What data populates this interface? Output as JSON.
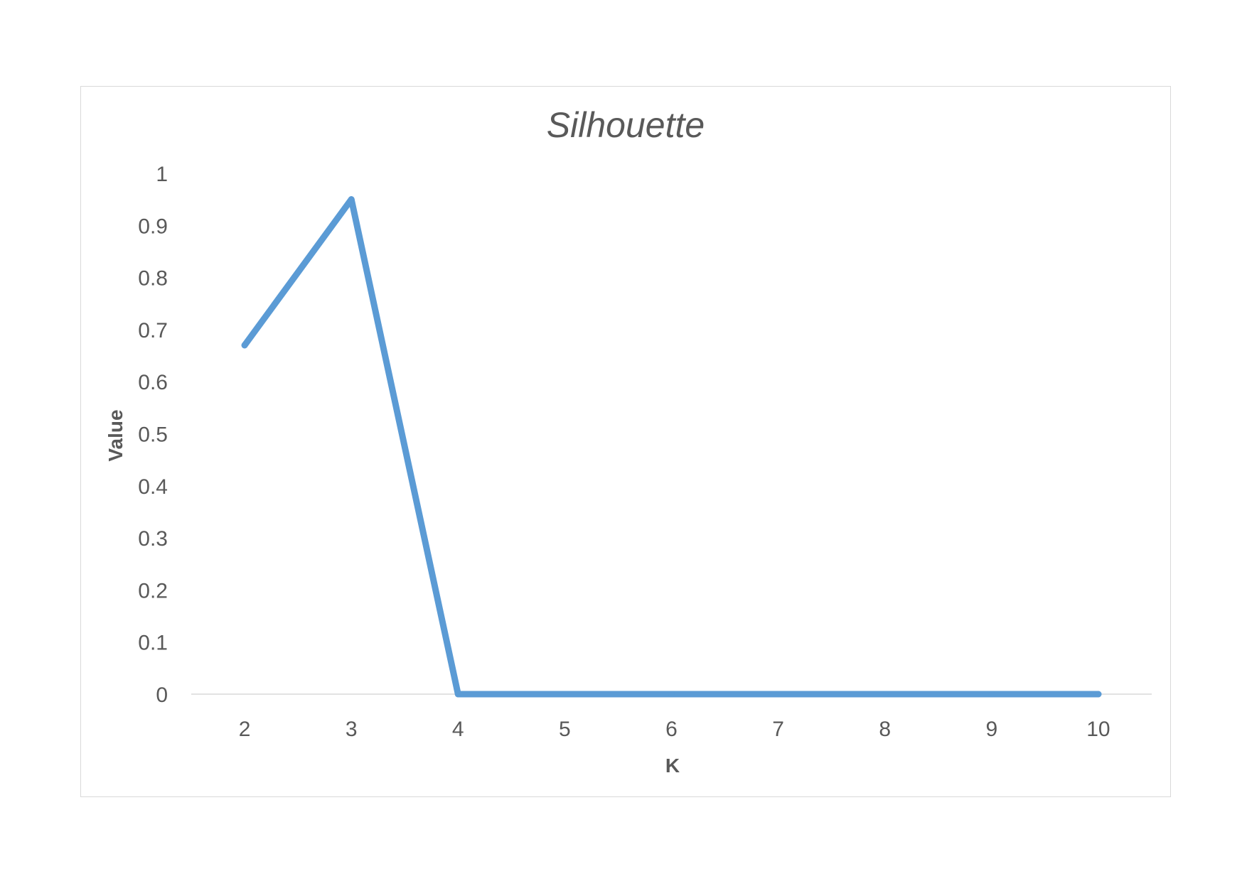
{
  "chart_data": {
    "type": "line",
    "title": "Silhouette",
    "xlabel": "K",
    "ylabel": "Value",
    "categories": [
      "2",
      "3",
      "4",
      "5",
      "6",
      "7",
      "8",
      "9",
      "10"
    ],
    "series": [
      {
        "values": [
          0.67,
          0.95,
          0,
          0,
          0,
          0,
          0,
          0,
          0
        ],
        "color": "#5B9BD5"
      }
    ],
    "ylim": [
      0,
      1
    ],
    "yticks": [
      "0",
      "0.1",
      "0.2",
      "0.3",
      "0.4",
      "0.5",
      "0.6",
      "0.7",
      "0.8",
      "0.9",
      "1"
    ],
    "grid": false,
    "legend": "none"
  }
}
